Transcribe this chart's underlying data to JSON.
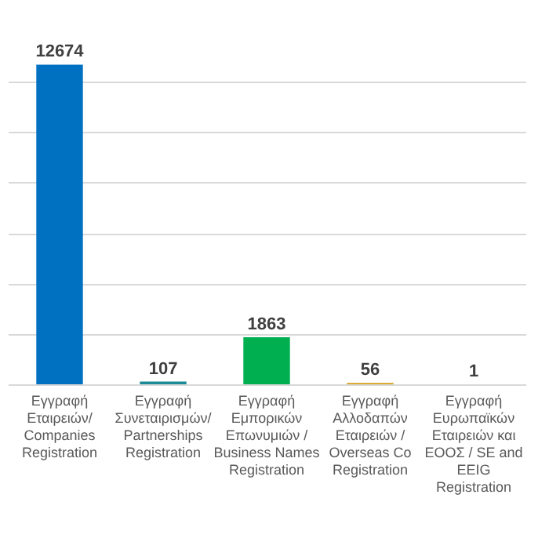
{
  "chart_data": {
    "type": "bar",
    "categories": [
      "Εγγραφή Εταιρειών/ Companies Registration",
      "Εγγραφή Συνεταιρισμών/ Partnerships Registration",
      "Εγγραφή Εμπορικών Επωνυμιών / Business Names Registration",
      "Εγγραφή Αλλοδαπών Εταιρειών / Overseas Co Registration",
      "Εγγραφή Ευρωπαϊκών Εταιρειών και ΕΟΟΣ / SE and EEIG Registration"
    ],
    "values": [
      12674,
      107,
      1863,
      56,
      1
    ],
    "colors": [
      "#0070c0",
      "#1a8a96",
      "#00b050",
      "#d4a017",
      "#1a8a96"
    ],
    "data_labels": true,
    "grid": "y"
  }
}
